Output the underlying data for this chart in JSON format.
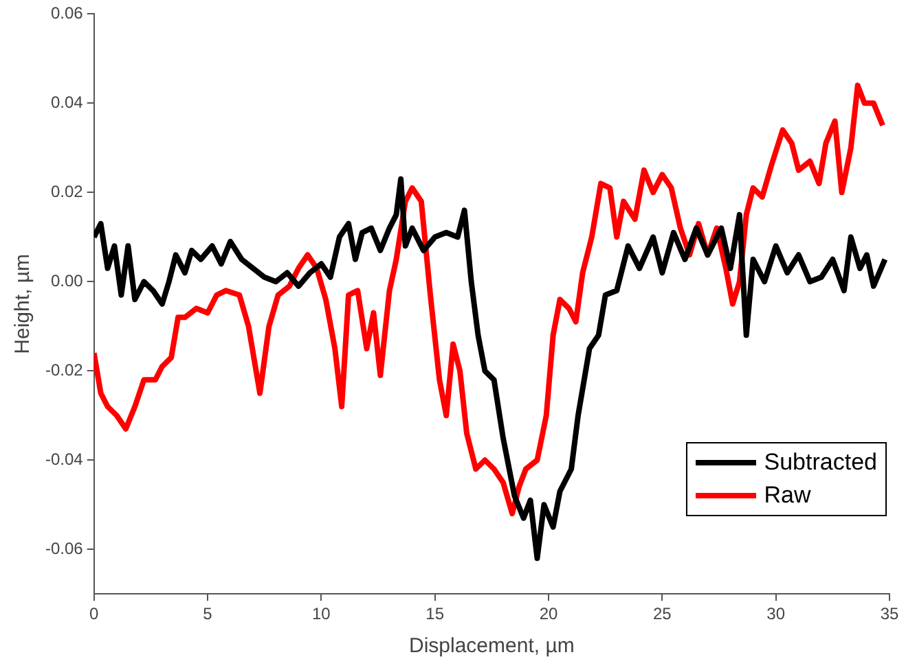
{
  "chart_data": {
    "type": "line",
    "xlabel": "Displacement, µm",
    "ylabel": "Height, µm",
    "xlim": [
      0,
      35
    ],
    "xticks": [
      0,
      5,
      10,
      15,
      20,
      25,
      30,
      35
    ],
    "ylim": [
      -0.07,
      0.06
    ],
    "yticks": [
      {
        "value": -0.06,
        "label": "-0.06"
      },
      {
        "value": -0.04,
        "label": "-0.04"
      },
      {
        "value": -0.02,
        "label": "-0.02"
      },
      {
        "value": 0,
        "label": "0.00"
      },
      {
        "value": 0.02,
        "label": "0.02"
      },
      {
        "value": 0.04,
        "label": "0.04"
      },
      {
        "value": 0.06,
        "label": "0.06"
      }
    ],
    "grid": false,
    "legend": "bottom right",
    "marker": "none",
    "line_style": "solid",
    "series": [
      {
        "name": "Subtracted",
        "color": "#000000",
        "x": [
          0,
          0.3,
          0.6,
          0.9,
          1.2,
          1.5,
          1.8,
          2.2,
          2.6,
          3.0,
          3.3,
          3.6,
          4.0,
          4.3,
          4.7,
          5.2,
          5.6,
          6.0,
          6.5,
          7.0,
          7.5,
          8.0,
          8.5,
          9.0,
          9.5,
          10.0,
          10.4,
          10.8,
          11.2,
          11.5,
          11.8,
          12.2,
          12.6,
          13.0,
          13.3,
          13.5,
          13.7,
          14.0,
          14.5,
          15.0,
          15.5,
          16.0,
          16.3,
          16.6,
          16.9,
          17.2,
          17.6,
          18.0,
          18.5,
          18.9,
          19.2,
          19.5,
          19.8,
          20.2,
          20.5,
          21.0,
          21.3,
          21.8,
          22.2,
          22.5,
          23.0,
          23.5,
          24.0,
          24.6,
          25.0,
          25.5,
          26.0,
          26.5,
          27.0,
          27.6,
          28.0,
          28.4,
          28.7,
          29.0,
          29.5,
          30.0,
          30.5,
          31.0,
          31.5,
          32.0,
          32.5,
          33.0,
          33.3,
          33.7,
          34.0,
          34.3,
          34.8
        ],
        "values": [
          0.01,
          0.013,
          0.003,
          0.008,
          -0.003,
          0.008,
          -0.004,
          0.0,
          -0.002,
          -0.005,
          0.0,
          0.006,
          0.002,
          0.007,
          0.005,
          0.008,
          0.004,
          0.009,
          0.005,
          0.003,
          0.001,
          0.0,
          0.002,
          -0.001,
          0.002,
          0.004,
          0.001,
          0.01,
          0.013,
          0.005,
          0.011,
          0.012,
          0.007,
          0.012,
          0.015,
          0.023,
          0.008,
          0.012,
          0.007,
          0.01,
          0.011,
          0.01,
          0.016,
          0.0,
          -0.012,
          -0.02,
          -0.022,
          -0.035,
          -0.048,
          -0.053,
          -0.049,
          -0.062,
          -0.05,
          -0.055,
          -0.047,
          -0.042,
          -0.03,
          -0.015,
          -0.012,
          -0.003,
          -0.002,
          0.008,
          0.003,
          0.01,
          0.002,
          0.011,
          0.005,
          0.012,
          0.006,
          0.012,
          0.003,
          0.015,
          -0.012,
          0.005,
          0.0,
          0.008,
          0.002,
          0.006,
          0.0,
          0.001,
          0.005,
          -0.002,
          0.01,
          0.003,
          0.006,
          -0.001,
          0.005
        ]
      },
      {
        "name": "Raw",
        "color": "#ff0000",
        "x": [
          0,
          0.3,
          0.6,
          1.0,
          1.4,
          1.8,
          2.2,
          2.7,
          3.0,
          3.4,
          3.7,
          4.0,
          4.5,
          5.0,
          5.4,
          5.8,
          6.4,
          6.8,
          7.3,
          7.7,
          8.1,
          8.6,
          9.0,
          9.4,
          9.8,
          10.2,
          10.6,
          10.9,
          11.2,
          11.6,
          12.0,
          12.3,
          12.6,
          13.0,
          13.3,
          13.7,
          14.0,
          14.4,
          14.8,
          15.2,
          15.5,
          15.8,
          16.1,
          16.4,
          16.8,
          17.2,
          17.6,
          18.0,
          18.4,
          18.7,
          19.0,
          19.5,
          19.9,
          20.2,
          20.5,
          20.9,
          21.2,
          21.5,
          21.9,
          22.3,
          22.7,
          23.0,
          23.3,
          23.8,
          24.2,
          24.6,
          25.0,
          25.4,
          25.8,
          26.2,
          26.6,
          27.0,
          27.4,
          27.8,
          28.1,
          28.4,
          28.7,
          29.0,
          29.4,
          29.8,
          30.3,
          30.7,
          31.0,
          31.5,
          31.9,
          32.2,
          32.6,
          32.9,
          33.3,
          33.6,
          33.9,
          34.3,
          34.7
        ],
        "values": [
          -0.016,
          -0.025,
          -0.028,
          -0.03,
          -0.033,
          -0.028,
          -0.022,
          -0.022,
          -0.019,
          -0.017,
          -0.008,
          -0.008,
          -0.006,
          -0.007,
          -0.003,
          -0.002,
          -0.003,
          -0.01,
          -0.025,
          -0.01,
          -0.003,
          -0.001,
          0.003,
          0.006,
          0.003,
          -0.004,
          -0.015,
          -0.028,
          -0.003,
          -0.002,
          -0.015,
          -0.007,
          -0.021,
          -0.002,
          0.005,
          0.018,
          0.021,
          0.018,
          -0.003,
          -0.022,
          -0.03,
          -0.014,
          -0.02,
          -0.034,
          -0.042,
          -0.04,
          -0.042,
          -0.045,
          -0.052,
          -0.046,
          -0.042,
          -0.04,
          -0.03,
          -0.012,
          -0.004,
          -0.006,
          -0.009,
          0.002,
          0.01,
          0.022,
          0.021,
          0.01,
          0.018,
          0.014,
          0.025,
          0.02,
          0.024,
          0.021,
          0.012,
          0.006,
          0.013,
          0.006,
          0.012,
          0.003,
          -0.005,
          0.0,
          0.015,
          0.021,
          0.019,
          0.026,
          0.034,
          0.031,
          0.025,
          0.027,
          0.022,
          0.031,
          0.036,
          0.02,
          0.03,
          0.044,
          0.04,
          0.04,
          0.035
        ]
      }
    ]
  }
}
